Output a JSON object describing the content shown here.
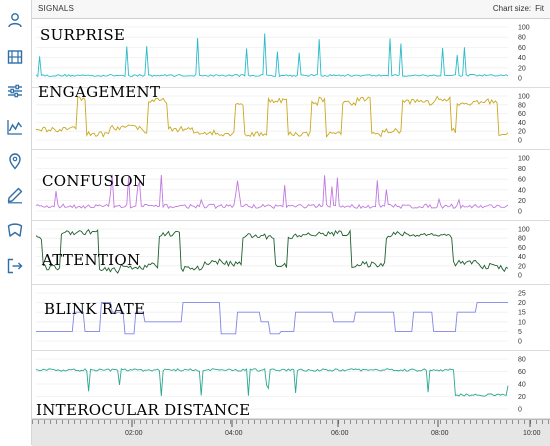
{
  "header": {
    "title": "SIGNALS",
    "chart_size_label": "Chart size:",
    "chart_size_value": "Fit"
  },
  "sidebar": {
    "items": [
      {
        "icon": "user-icon"
      },
      {
        "icon": "film-icon"
      },
      {
        "icon": "sliders-icon"
      },
      {
        "icon": "line-chart-icon"
      },
      {
        "icon": "map-pin-icon"
      },
      {
        "icon": "pencil-icon"
      },
      {
        "icon": "bookmark-icon"
      },
      {
        "icon": "logout-icon"
      }
    ]
  },
  "timeline": {
    "ticks": [
      "02:00",
      "04:00",
      "06:00",
      "08:00",
      "10:00"
    ]
  },
  "chart_data": [
    {
      "type": "line",
      "title": "SURPRISE",
      "color": "#2bbcc9",
      "ylim": [
        0,
        100
      ],
      "yticks": [
        "100",
        "80",
        "60",
        "40",
        "20",
        "0"
      ]
    },
    {
      "type": "line",
      "title": "ENGAGEMENT",
      "color": "#c9a81f",
      "ylim": [
        0,
        100
      ],
      "yticks": [
        "100",
        "80",
        "60",
        "40",
        "20",
        "0"
      ]
    },
    {
      "type": "line",
      "title": "CONFUSION",
      "color": "#c07ae0",
      "ylim": [
        0,
        100
      ],
      "yticks": [
        "100",
        "80",
        "60",
        "40",
        "20",
        "0"
      ]
    },
    {
      "type": "line",
      "title": "ATTENTION",
      "color": "#1f5e2e",
      "ylim": [
        0,
        100
      ],
      "yticks": [
        "100",
        "80",
        "60",
        "40",
        "20",
        "0"
      ]
    },
    {
      "type": "line",
      "title": "BLINK RATE",
      "color": "#7f86e8",
      "ylim": [
        0,
        25
      ],
      "yticks": [
        "25",
        "20",
        "15",
        "10",
        "5",
        "0"
      ]
    },
    {
      "type": "line",
      "title": "INTEROCULAR DISTANCE",
      "color": "#2aa88f",
      "ylim": [
        0,
        80
      ],
      "yticks": [
        "80",
        "60",
        "40",
        "20",
        "0"
      ]
    }
  ]
}
